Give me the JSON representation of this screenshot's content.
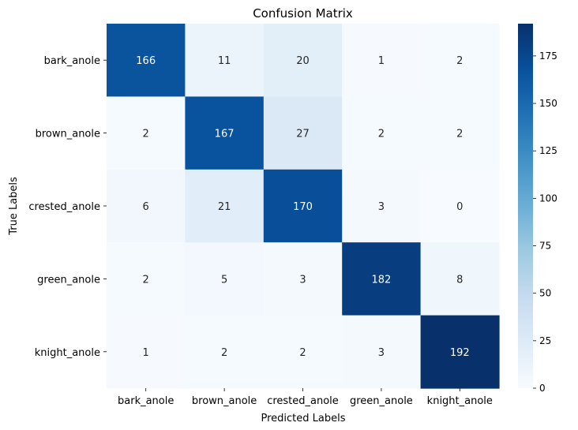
{
  "chart_data": {
    "type": "heatmap",
    "title": "Confusion Matrix",
    "xlabel": "Predicted Labels",
    "ylabel": "True Labels",
    "x_categories": [
      "bark_anole",
      "brown_anole",
      "crested_anole",
      "green_anole",
      "knight_anole"
    ],
    "y_categories": [
      "bark_anole",
      "brown_anole",
      "crested_anole",
      "green_anole",
      "knight_anole"
    ],
    "values": [
      [
        166,
        11,
        20,
        1,
        2
      ],
      [
        2,
        167,
        27,
        2,
        2
      ],
      [
        6,
        21,
        170,
        3,
        0
      ],
      [
        2,
        5,
        3,
        182,
        8
      ],
      [
        1,
        2,
        2,
        3,
        192
      ]
    ],
    "colorbar": {
      "min": 0,
      "max": 192,
      "ticks": [
        0,
        25,
        50,
        75,
        100,
        125,
        150,
        175
      ],
      "colormap": "Blues",
      "color_low": "#f7fbff",
      "color_high": "#08306b"
    }
  }
}
